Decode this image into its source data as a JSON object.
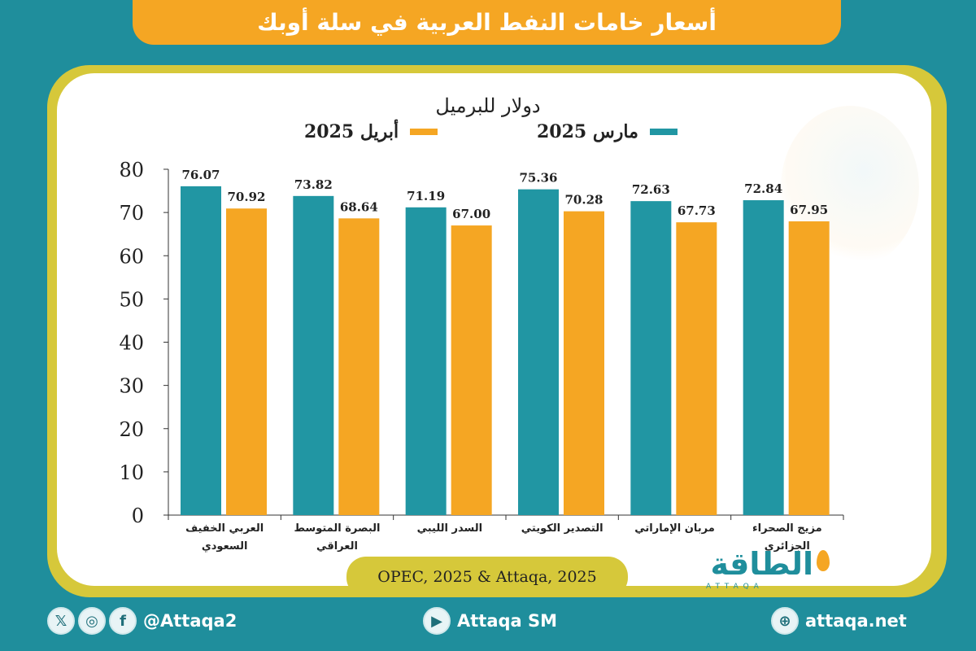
{
  "header": {
    "title": "أسعار خامات النفط العربية في سلة أوبك"
  },
  "colors": {
    "teal": "#2196a3",
    "orange": "#f5a623",
    "frame": "#d6c83a",
    "background": "#1f8e9c"
  },
  "chart_data": {
    "type": "bar",
    "title": "أسعار خامات النفط العربية في سلة أوبك",
    "ylabel": "دولار للبرميل",
    "xlabel": "",
    "ylim": [
      0,
      80
    ],
    "yticks": [
      "0",
      "10",
      "20",
      "30",
      "40",
      "50",
      "60",
      "70",
      "80"
    ],
    "grid": false,
    "legend_position": "top",
    "categories": [
      {
        "line1": "العربي الخفيف",
        "line2": "السعودي"
      },
      {
        "line1": "البصرة المتوسط",
        "line2": "العراقي"
      },
      {
        "line1": "السدر الليبي",
        "line2": ""
      },
      {
        "line1": "التصدير الكويتي",
        "line2": ""
      },
      {
        "line1": "مربان الإماراتي",
        "line2": ""
      },
      {
        "line1": "مزيج الصحراء",
        "line2": "الجزائري"
      }
    ],
    "series": [
      {
        "name": "مارس 2025",
        "color": "#2196a3",
        "values": [
          76.07,
          73.82,
          71.19,
          75.36,
          72.63,
          72.84
        ],
        "labels": [
          "76.07",
          "73.82",
          "71.19",
          "75.36",
          "72.63",
          "72.84"
        ]
      },
      {
        "name": "أبريل 2025",
        "color": "#f5a623",
        "values": [
          70.92,
          68.64,
          67.0,
          70.28,
          67.73,
          67.95
        ],
        "labels": [
          "70.92",
          "68.64",
          "67.00",
          "70.28",
          "67.73",
          "67.95"
        ]
      }
    ]
  },
  "source": "OPEC, 2025 & Attaqa, 2025",
  "logo": {
    "text": "الطاقة",
    "sub": "ATTAQA"
  },
  "footer": {
    "social_handle": "@Attaqa2",
    "youtube_handle": "Attaqa SM",
    "website": "attaqa.net",
    "icons": [
      "x-icon",
      "instagram-icon",
      "facebook-icon",
      "youtube-icon",
      "globe-icon"
    ],
    "icon_glyphs": {
      "x": "𝕏",
      "instagram": "◎",
      "facebook": "f",
      "youtube": "▶",
      "globe": "⊕"
    }
  }
}
